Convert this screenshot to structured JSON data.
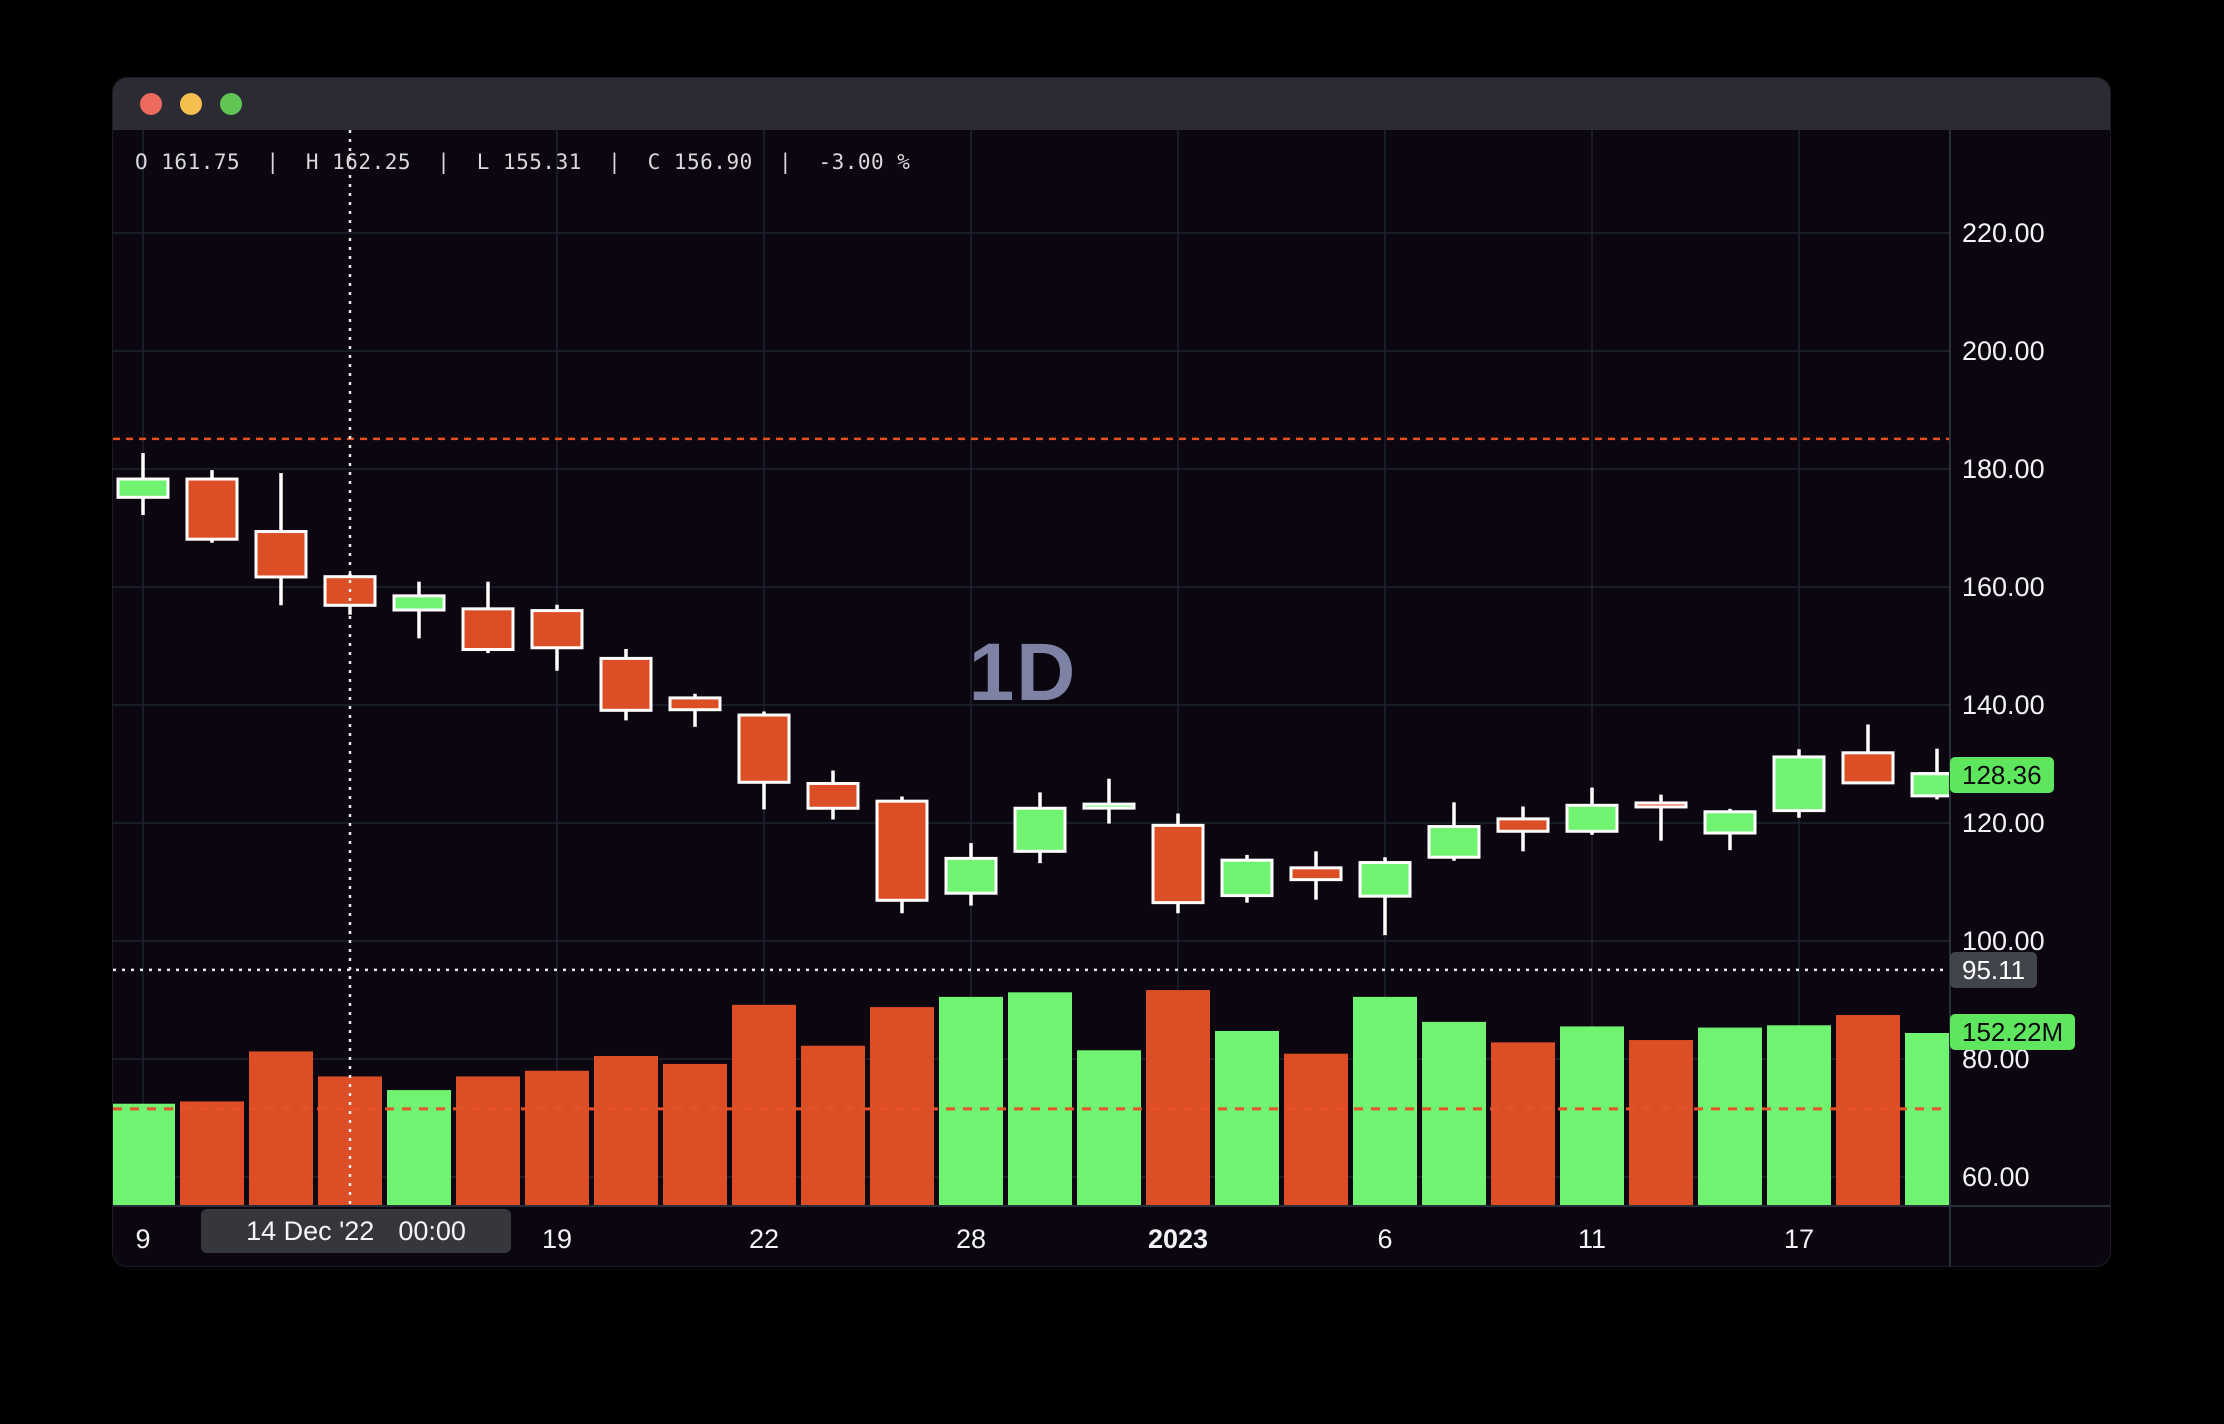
{
  "window": {
    "titlebar_color": "#2b2c33",
    "traffic_lights": [
      {
        "name": "close",
        "color": "#ed6a5e"
      },
      {
        "name": "minimize",
        "color": "#f4bf4f"
      },
      {
        "name": "zoom",
        "color": "#61c554"
      }
    ]
  },
  "ohlc_readout": {
    "fields": [
      {
        "label": "O",
        "value": "161.75"
      },
      {
        "label": "H",
        "value": "162.25"
      },
      {
        "label": "L",
        "value": "155.31"
      },
      {
        "label": "C",
        "value": "156.90"
      }
    ],
    "change": "-3.00 %",
    "separator": "|"
  },
  "watermark": "1D",
  "badges": {
    "last_price": {
      "text": "128.36",
      "bg": "#5ee65e",
      "fg": "#0b0b0b"
    },
    "crosshair_price": {
      "text": "95.11",
      "bg": "#42444c",
      "fg": "#ffffff"
    },
    "volume": {
      "text": "152.22M",
      "bg": "#5ee65e",
      "fg": "#0b0b0b"
    }
  },
  "tooltip": {
    "date": "14 Dec '22",
    "time": "00:00"
  },
  "colors": {
    "up": "#70f370",
    "down": "#dc4f26",
    "background": "#0b0610",
    "grid": "#1e2231",
    "axis_text": "#f2f3f5",
    "watermark": "#7e82a5",
    "alert_line": "#e8501e",
    "crosshair": "#eaeaea",
    "volume_ma_line": "#e8502a",
    "pane_border": "#2a2e3a",
    "wick": "#ffffff"
  },
  "chart_data": {
    "type": "candlestick",
    "interval": "1D",
    "title": "",
    "legend_position": "none",
    "grid": true,
    "price_axis": {
      "side": "right",
      "ticks": [
        {
          "label": "220.00",
          "value": 220
        },
        {
          "label": "200.00",
          "value": 200
        },
        {
          "label": "180.00",
          "value": 180
        },
        {
          "label": "160.00",
          "value": 160
        },
        {
          "label": "140.00",
          "value": 140
        },
        {
          "label": "120.00",
          "value": 120
        },
        {
          "label": "100.00",
          "value": 100
        },
        {
          "label": "80.00",
          "value": 80
        },
        {
          "label": "60.00",
          "value": 60
        }
      ],
      "visible_range": [
        55,
        238
      ]
    },
    "time_axis": {
      "ticks": [
        {
          "label": "9",
          "candle_index": 0,
          "bold": false
        },
        {
          "label": "19",
          "candle_index": 6,
          "bold": false
        },
        {
          "label": "22",
          "candle_index": 9,
          "bold": false
        },
        {
          "label": "28",
          "candle_index": 12,
          "bold": false
        },
        {
          "label": "2023",
          "candle_index": 15,
          "bold": true
        },
        {
          "label": "6",
          "candle_index": 18,
          "bold": false
        },
        {
          "label": "11",
          "candle_index": 21,
          "bold": false
        },
        {
          "label": "17",
          "candle_index": 24,
          "bold": false
        }
      ]
    },
    "series": [
      {
        "date": "9 Dec '22",
        "open": 175.2,
        "high": 182.7,
        "low": 172.2,
        "close": 178.3,
        "volume_m": 90
      },
      {
        "date": "12 Dec '22",
        "open": 178.3,
        "high": 179.8,
        "low": 167.5,
        "close": 168.1,
        "volume_m": 92
      },
      {
        "date": "13 Dec '22",
        "open": 169.4,
        "high": 179.3,
        "low": 156.9,
        "close": 161.7,
        "volume_m": 136
      },
      {
        "date": "14 Dec '22",
        "open": 161.75,
        "high": 162.25,
        "low": 155.31,
        "close": 156.9,
        "volume_m": 114
      },
      {
        "date": "15 Dec '22",
        "open": 156.1,
        "high": 160.9,
        "low": 151.3,
        "close": 158.5,
        "volume_m": 102
      },
      {
        "date": "16 Dec '22",
        "open": 156.3,
        "high": 160.9,
        "low": 148.8,
        "close": 149.4,
        "volume_m": 114
      },
      {
        "date": "19 Dec '22",
        "open": 156.0,
        "high": 157.0,
        "low": 145.8,
        "close": 149.7,
        "volume_m": 119
      },
      {
        "date": "20 Dec '22",
        "open": 147.9,
        "high": 149.5,
        "low": 137.4,
        "close": 139.1,
        "volume_m": 132
      },
      {
        "date": "21 Dec '22",
        "open": 141.2,
        "high": 141.9,
        "low": 136.3,
        "close": 139.2,
        "volume_m": 125
      },
      {
        "date": "22 Dec '22",
        "open": 138.3,
        "high": 138.9,
        "low": 122.3,
        "close": 126.9,
        "volume_m": 177
      },
      {
        "date": "23 Dec '22",
        "open": 126.7,
        "high": 128.9,
        "low": 120.6,
        "close": 122.5,
        "volume_m": 141
      },
      {
        "date": "27 Dec '22",
        "open": 123.7,
        "high": 124.5,
        "low": 104.7,
        "close": 106.9,
        "volume_m": 175
      },
      {
        "date": "28 Dec '22",
        "open": 108.1,
        "high": 116.6,
        "low": 106.0,
        "close": 114.0,
        "volume_m": 184
      },
      {
        "date": "29 Dec '22",
        "open": 115.2,
        "high": 125.2,
        "low": 113.2,
        "close": 122.5,
        "volume_m": 188
      },
      {
        "date": "30 Dec '22",
        "open": 122.6,
        "high": 127.5,
        "low": 119.9,
        "close": 123.2,
        "volume_m": 137
      },
      {
        "date": "3 Jan '23",
        "open": 119.6,
        "high": 121.6,
        "low": 104.7,
        "close": 106.5,
        "volume_m": 190
      },
      {
        "date": "4 Jan '23",
        "open": 107.7,
        "high": 114.6,
        "low": 106.5,
        "close": 113.7,
        "volume_m": 154
      },
      {
        "date": "5 Jan '23",
        "open": 112.4,
        "high": 115.2,
        "low": 107.0,
        "close": 110.4,
        "volume_m": 134
      },
      {
        "date": "6 Jan '23",
        "open": 107.6,
        "high": 114.2,
        "low": 101.0,
        "close": 113.3,
        "volume_m": 184
      },
      {
        "date": "9 Jan '23",
        "open": 114.2,
        "high": 123.5,
        "low": 113.6,
        "close": 119.4,
        "volume_m": 162
      },
      {
        "date": "10 Jan '23",
        "open": 120.7,
        "high": 122.8,
        "low": 115.2,
        "close": 118.6,
        "volume_m": 144
      },
      {
        "date": "11 Jan '23",
        "open": 118.6,
        "high": 126.0,
        "low": 118.0,
        "close": 123.0,
        "volume_m": 158
      },
      {
        "date": "12 Jan '23",
        "open": 123.4,
        "high": 124.8,
        "low": 117.0,
        "close": 122.9,
        "volume_m": 146
      },
      {
        "date": "13 Jan '23",
        "open": 118.3,
        "high": 122.4,
        "low": 115.4,
        "close": 121.9,
        "volume_m": 157
      },
      {
        "date": "17 Jan '23",
        "open": 122.1,
        "high": 132.5,
        "low": 120.9,
        "close": 131.2,
        "volume_m": 159
      },
      {
        "date": "18 Jan '23",
        "open": 131.9,
        "high": 136.7,
        "low": 126.6,
        "close": 126.8,
        "volume_m": 168
      },
      {
        "date": "19 Jan '23",
        "open": 124.6,
        "high": 132.6,
        "low": 124.0,
        "close": 128.36,
        "volume_m": 152.22
      }
    ],
    "crosshair": {
      "candle_index": 3,
      "date_label": "14 Dec '22",
      "time_label": "00:00",
      "price": 95.11,
      "price_label": "95.11"
    },
    "last_price": {
      "value": 128.36,
      "label": "128.36"
    },
    "last_volume_label": "152.22M",
    "levels": {
      "upper_dashed_price": 185.1,
      "volume_dashed_m": 85.4
    }
  }
}
